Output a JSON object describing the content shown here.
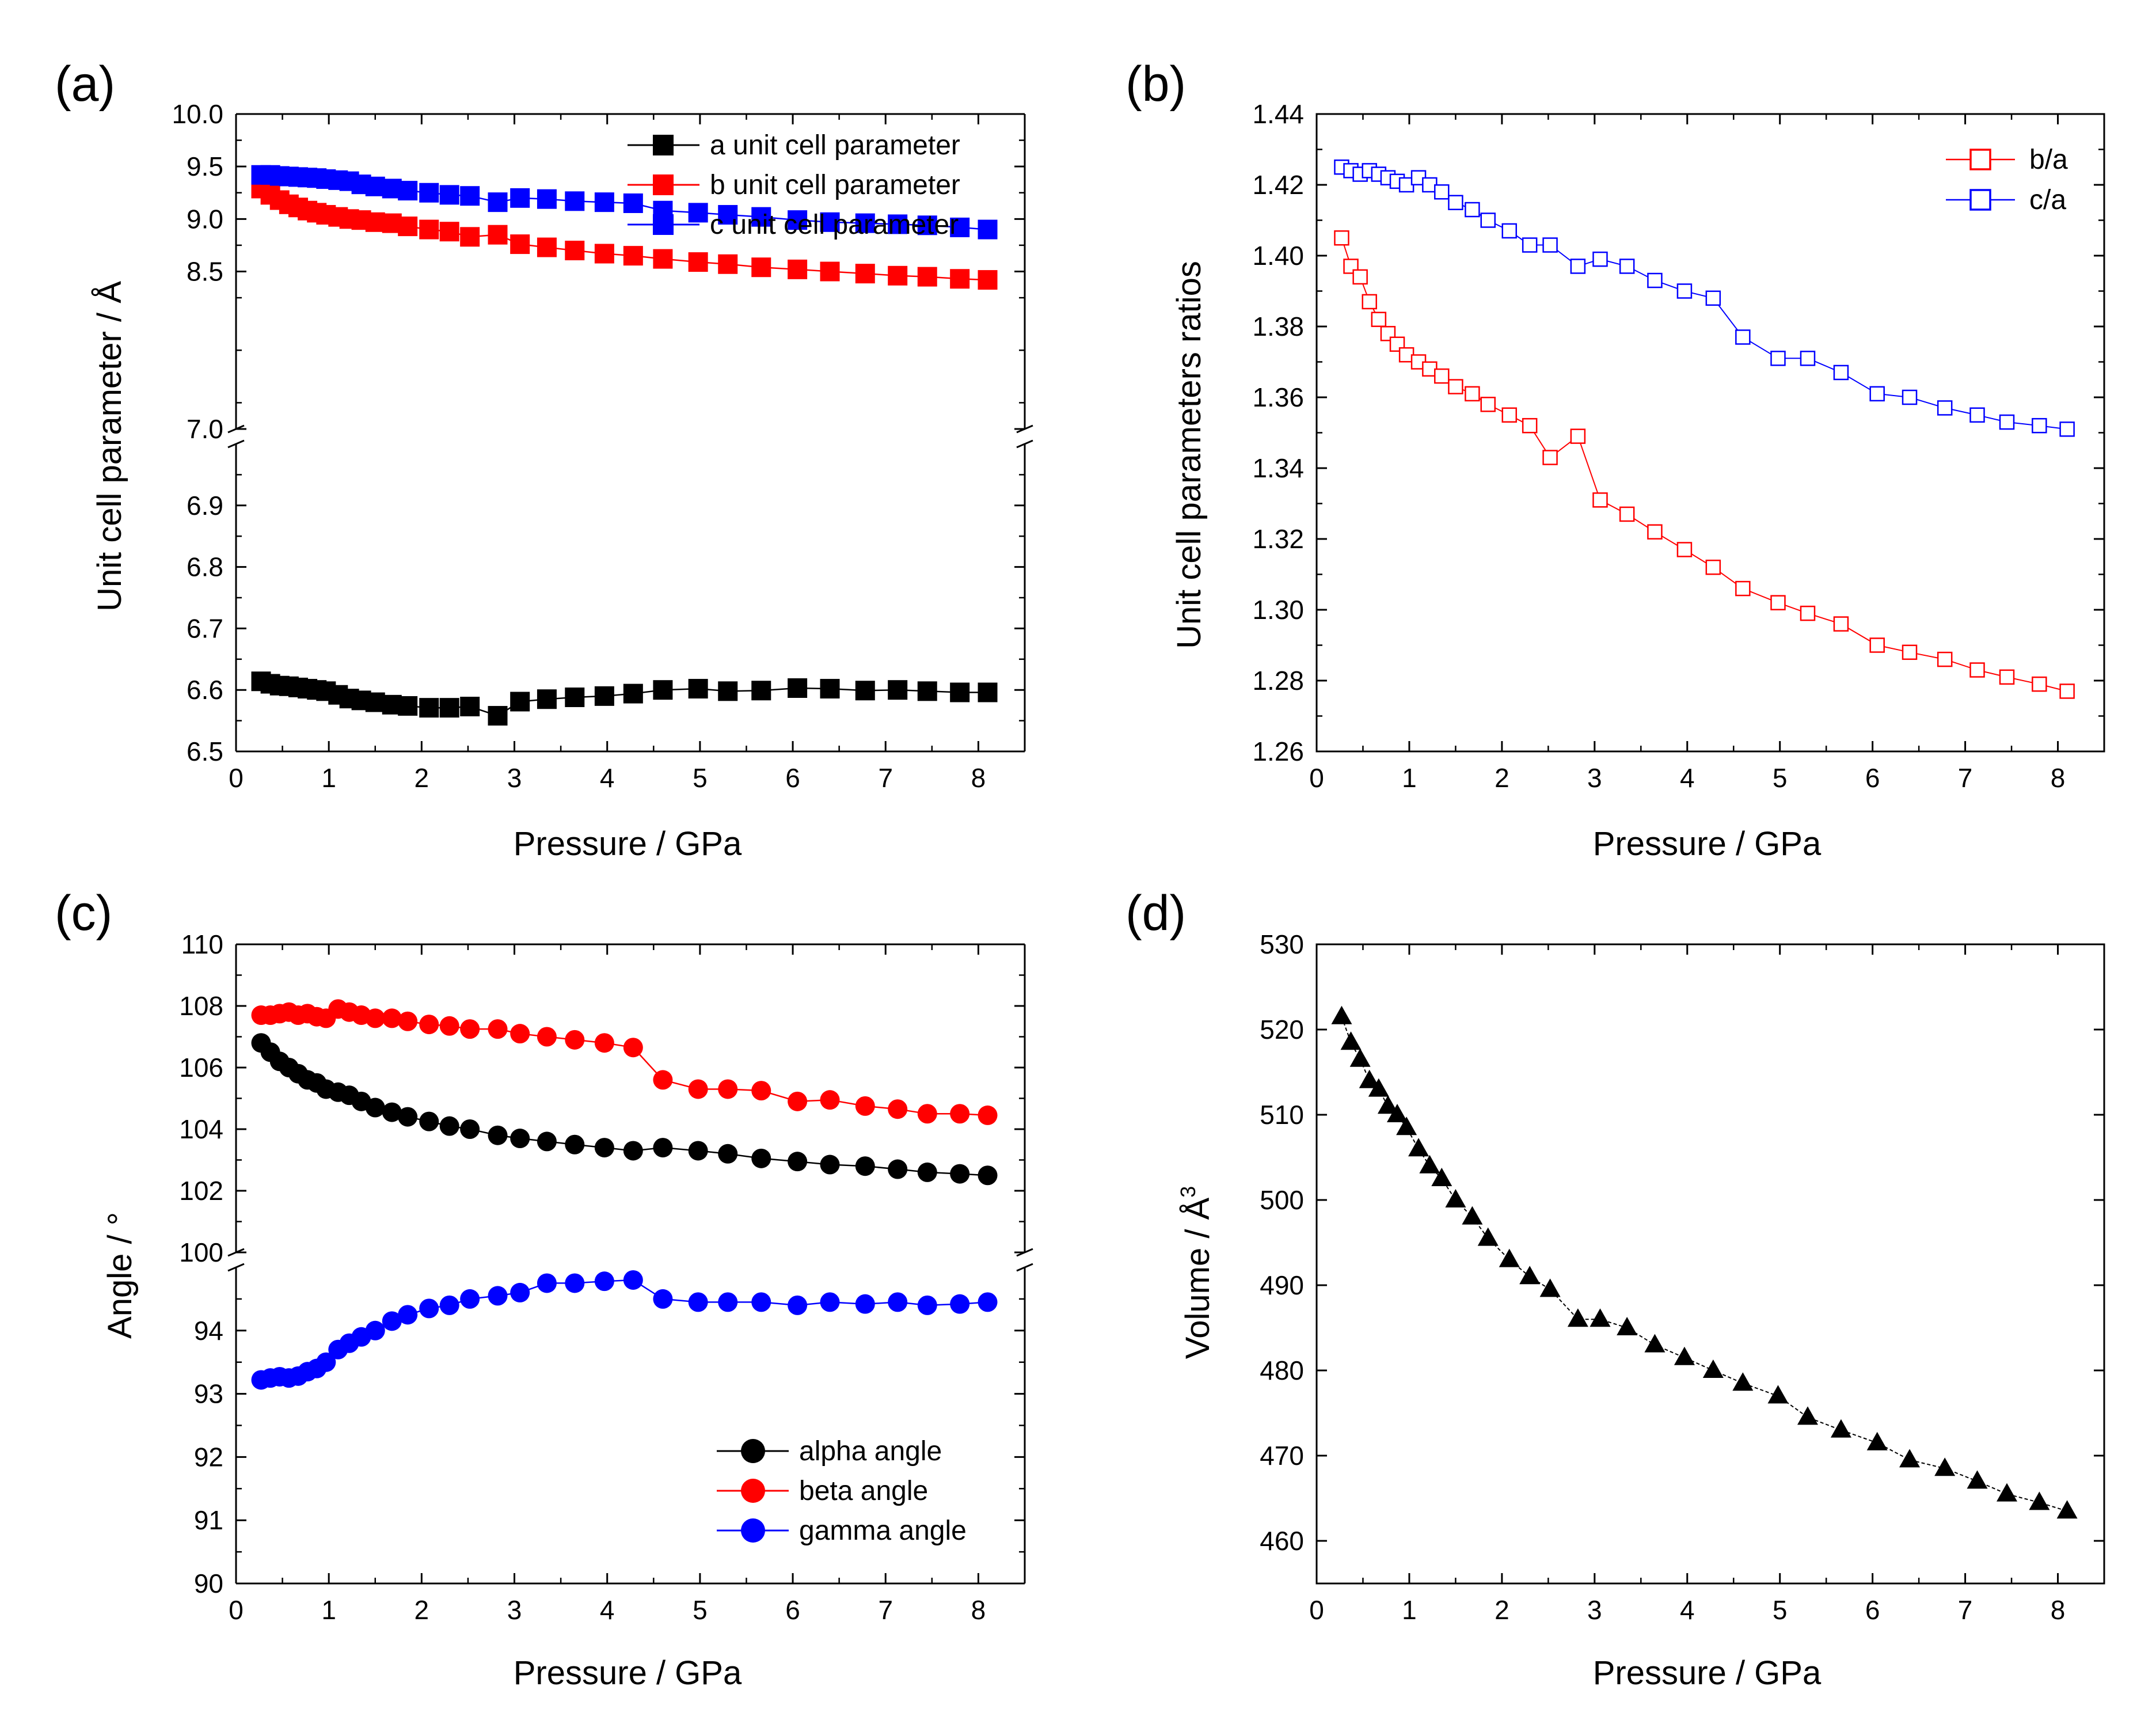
{
  "chart_data": [
    {
      "panel_label": "(a)",
      "type": "line",
      "xlabel": "Pressure / GPa",
      "ylabel": "Unit cell parameter / Å",
      "xlim": [
        0,
        8.5
      ],
      "xticks": [
        "0",
        "1",
        "2",
        "3",
        "4",
        "5",
        "6",
        "7",
        "8"
      ],
      "axis_break": true,
      "upper_segment": {
        "ylim": [
          7.0,
          10.0
        ],
        "yticks": [
          "7.0",
          "8.5",
          "9.0",
          "9.5",
          "10.0"
        ],
        "tick_values": [
          7.0,
          8.5,
          9.0,
          9.5,
          10.0
        ]
      },
      "lower_segment": {
        "ylim": [
          6.5,
          7.0
        ],
        "yticks": [
          "6.5",
          "6.6",
          "6.7",
          "6.8",
          "6.9"
        ],
        "tick_values": [
          6.5,
          6.6,
          6.7,
          6.8,
          6.9
        ]
      },
      "x": [
        0.27,
        0.37,
        0.47,
        0.57,
        0.67,
        0.77,
        0.87,
        0.97,
        1.1,
        1.22,
        1.35,
        1.5,
        1.68,
        1.85,
        2.08,
        2.3,
        2.52,
        2.82,
        3.06,
        3.35,
        3.65,
        3.97,
        4.28,
        4.6,
        4.98,
        5.3,
        5.66,
        6.05,
        6.4,
        6.78,
        7.13,
        7.45,
        7.8,
        8.1
      ],
      "series": [
        {
          "name": "a unit cell parameter",
          "segment": "lower",
          "color": "#000000",
          "marker": "square-filled",
          "values": [
            6.614,
            6.61,
            6.607,
            6.606,
            6.604,
            6.602,
            6.6,
            6.598,
            6.592,
            6.586,
            6.583,
            6.58,
            6.576,
            6.574,
            6.571,
            6.571,
            6.573,
            6.558,
            6.581,
            6.585,
            6.588,
            6.59,
            6.594,
            6.6,
            6.602,
            6.598,
            6.599,
            6.603,
            6.602,
            6.599,
            6.6,
            6.598,
            6.596,
            6.596
          ]
        },
        {
          "name": "b unit cell parameter",
          "segment": "upper",
          "color": "#ff0000",
          "marker": "square-filled",
          "values": [
            9.29,
            9.23,
            9.18,
            9.14,
            9.11,
            9.08,
            9.06,
            9.04,
            9.02,
            9.0,
            8.99,
            8.97,
            8.96,
            8.93,
            8.9,
            8.88,
            8.83,
            8.85,
            8.76,
            8.73,
            8.7,
            8.67,
            8.65,
            8.62,
            8.59,
            8.57,
            8.54,
            8.52,
            8.5,
            8.48,
            8.46,
            8.45,
            8.43,
            8.42
          ]
        },
        {
          "name": "c unit cell parameter",
          "segment": "upper",
          "color": "#0000ff",
          "marker": "square-filled",
          "values": [
            9.42,
            9.42,
            9.41,
            9.405,
            9.4,
            9.395,
            9.39,
            9.38,
            9.37,
            9.36,
            9.33,
            9.31,
            9.29,
            9.27,
            9.25,
            9.23,
            9.22,
            9.16,
            9.2,
            9.19,
            9.17,
            9.16,
            9.15,
            9.08,
            9.06,
            9.04,
            9.02,
            8.99,
            8.97,
            8.96,
            8.95,
            8.94,
            8.92,
            8.9
          ]
        }
      ]
    },
    {
      "panel_label": "(b)",
      "type": "line",
      "xlabel": "Pressure / GPa",
      "ylabel": "Unit cell parameters ratios",
      "xlim": [
        0,
        8.5
      ],
      "xticks": [
        "0",
        "1",
        "2",
        "3",
        "4",
        "5",
        "6",
        "7",
        "8"
      ],
      "ylim": [
        1.26,
        1.44
      ],
      "yticks": [
        "1.26",
        "1.28",
        "1.30",
        "1.32",
        "1.34",
        "1.36",
        "1.38",
        "1.40",
        "1.42",
        "1.44"
      ],
      "tick_values": [
        1.26,
        1.28,
        1.3,
        1.32,
        1.34,
        1.36,
        1.38,
        1.4,
        1.42,
        1.44
      ],
      "x": [
        0.27,
        0.37,
        0.47,
        0.57,
        0.67,
        0.77,
        0.87,
        0.97,
        1.1,
        1.22,
        1.35,
        1.5,
        1.68,
        1.85,
        2.08,
        2.3,
        2.52,
        2.82,
        3.06,
        3.35,
        3.65,
        3.97,
        4.28,
        4.6,
        4.98,
        5.3,
        5.66,
        6.05,
        6.4,
        6.78,
        7.13,
        7.45,
        7.8,
        8.1
      ],
      "series": [
        {
          "name": "b/a",
          "color": "#ff0000",
          "marker": "square-open",
          "values": [
            1.405,
            1.397,
            1.394,
            1.387,
            1.382,
            1.378,
            1.375,
            1.372,
            1.37,
            1.368,
            1.366,
            1.363,
            1.361,
            1.358,
            1.355,
            1.352,
            1.343,
            1.349,
            1.331,
            1.327,
            1.322,
            1.317,
            1.312,
            1.306,
            1.302,
            1.299,
            1.296,
            1.29,
            1.288,
            1.286,
            1.283,
            1.281,
            1.279,
            1.277
          ]
        },
        {
          "name": "c/a",
          "color": "#0000ff",
          "marker": "square-open",
          "values": [
            1.425,
            1.424,
            1.423,
            1.424,
            1.423,
            1.422,
            1.421,
            1.42,
            1.422,
            1.42,
            1.418,
            1.415,
            1.413,
            1.41,
            1.407,
            1.403,
            1.403,
            1.397,
            1.399,
            1.397,
            1.393,
            1.39,
            1.388,
            1.377,
            1.371,
            1.371,
            1.367,
            1.361,
            1.36,
            1.357,
            1.355,
            1.353,
            1.352,
            1.351
          ]
        }
      ],
      "legend_position": "top-right"
    },
    {
      "panel_label": "(c)",
      "type": "line",
      "xlabel": "Pressure / GPa",
      "ylabel": "Angle / °",
      "xlim": [
        0,
        8.5
      ],
      "xticks": [
        "0",
        "1",
        "2",
        "3",
        "4",
        "5",
        "6",
        "7",
        "8"
      ],
      "axis_break": true,
      "upper_segment": {
        "ylim": [
          100,
          110
        ],
        "yticks": [
          "100",
          "102",
          "104",
          "106",
          "108",
          "110"
        ],
        "tick_values": [
          100,
          102,
          104,
          106,
          108,
          110
        ]
      },
      "lower_segment": {
        "ylim": [
          90,
          95
        ],
        "yticks": [
          "90",
          "91",
          "92",
          "93",
          "94"
        ],
        "tick_values": [
          90,
          91,
          92,
          93,
          94
        ]
      },
      "x": [
        0.27,
        0.37,
        0.47,
        0.57,
        0.67,
        0.77,
        0.87,
        0.97,
        1.1,
        1.22,
        1.35,
        1.5,
        1.68,
        1.85,
        2.08,
        2.3,
        2.52,
        2.82,
        3.06,
        3.35,
        3.65,
        3.97,
        4.28,
        4.6,
        4.98,
        5.3,
        5.66,
        6.05,
        6.4,
        6.78,
        7.13,
        7.45,
        7.8,
        8.1
      ],
      "series": [
        {
          "name": "alpha angle",
          "segment": "upper",
          "color": "#000000",
          "marker": "circle-filled",
          "values": [
            106.8,
            106.5,
            106.2,
            106.0,
            105.8,
            105.6,
            105.5,
            105.3,
            105.2,
            105.1,
            104.9,
            104.7,
            104.55,
            104.4,
            104.25,
            104.1,
            104.0,
            103.8,
            103.7,
            103.6,
            103.5,
            103.4,
            103.3,
            103.4,
            103.3,
            103.2,
            103.05,
            102.95,
            102.85,
            102.8,
            102.7,
            102.6,
            102.55,
            102.5
          ]
        },
        {
          "name": "beta angle",
          "segment": "upper",
          "color": "#ff0000",
          "marker": "circle-filled",
          "values": [
            107.7,
            107.7,
            107.75,
            107.8,
            107.7,
            107.75,
            107.65,
            107.6,
            107.9,
            107.8,
            107.7,
            107.6,
            107.6,
            107.5,
            107.4,
            107.35,
            107.25,
            107.25,
            107.1,
            107.0,
            106.9,
            106.8,
            106.65,
            105.6,
            105.3,
            105.3,
            105.25,
            104.9,
            104.95,
            104.75,
            104.65,
            104.5,
            104.5,
            104.45
          ]
        },
        {
          "name": "gamma angle",
          "segment": "lower",
          "color": "#0000ff",
          "marker": "circle-filled",
          "values": [
            93.22,
            93.25,
            93.27,
            93.25,
            93.28,
            93.35,
            93.4,
            93.5,
            93.7,
            93.8,
            93.9,
            94.0,
            94.15,
            94.25,
            94.35,
            94.4,
            94.5,
            94.55,
            94.6,
            94.75,
            94.75,
            94.78,
            94.8,
            94.5,
            94.45,
            94.45,
            94.45,
            94.4,
            94.45,
            94.42,
            94.45,
            94.4,
            94.42,
            94.45
          ]
        }
      ],
      "legend_position": "bottom-right"
    },
    {
      "panel_label": "(d)",
      "type": "scatter",
      "xlabel": "Pressure / GPa",
      "ylabel_main": "Volume / Å",
      "ylabel_sup": "3",
      "xlim": [
        0,
        8.5
      ],
      "xticks": [
        "0",
        "1",
        "2",
        "3",
        "4",
        "5",
        "6",
        "7",
        "8"
      ],
      "ylim": [
        455,
        530
      ],
      "yticks": [
        "460",
        "470",
        "480",
        "490",
        "500",
        "510",
        "520",
        "530"
      ],
      "tick_values": [
        460,
        470,
        480,
        490,
        500,
        510,
        520,
        530
      ],
      "x": [
        0.27,
        0.37,
        0.47,
        0.57,
        0.67,
        0.77,
        0.87,
        0.97,
        1.1,
        1.22,
        1.35,
        1.5,
        1.68,
        1.85,
        2.08,
        2.3,
        2.52,
        2.82,
        3.06,
        3.35,
        3.65,
        3.97,
        4.28,
        4.6,
        4.98,
        5.3,
        5.66,
        6.05,
        6.4,
        6.78,
        7.13,
        7.45,
        7.8,
        8.1
      ],
      "series": [
        {
          "name": "volume",
          "color": "#000000",
          "marker": "triangle-filled",
          "values": [
            521.5,
            518.5,
            516.5,
            514,
            513,
            511,
            510,
            508.5,
            506,
            504,
            502.5,
            500,
            498,
            495.5,
            493,
            491,
            489.5,
            486,
            486,
            485,
            483,
            481.5,
            480,
            478.5,
            477,
            474.5,
            473,
            471.5,
            469.5,
            468.5,
            467,
            465.5,
            464.5,
            463.5
          ]
        }
      ]
    }
  ]
}
